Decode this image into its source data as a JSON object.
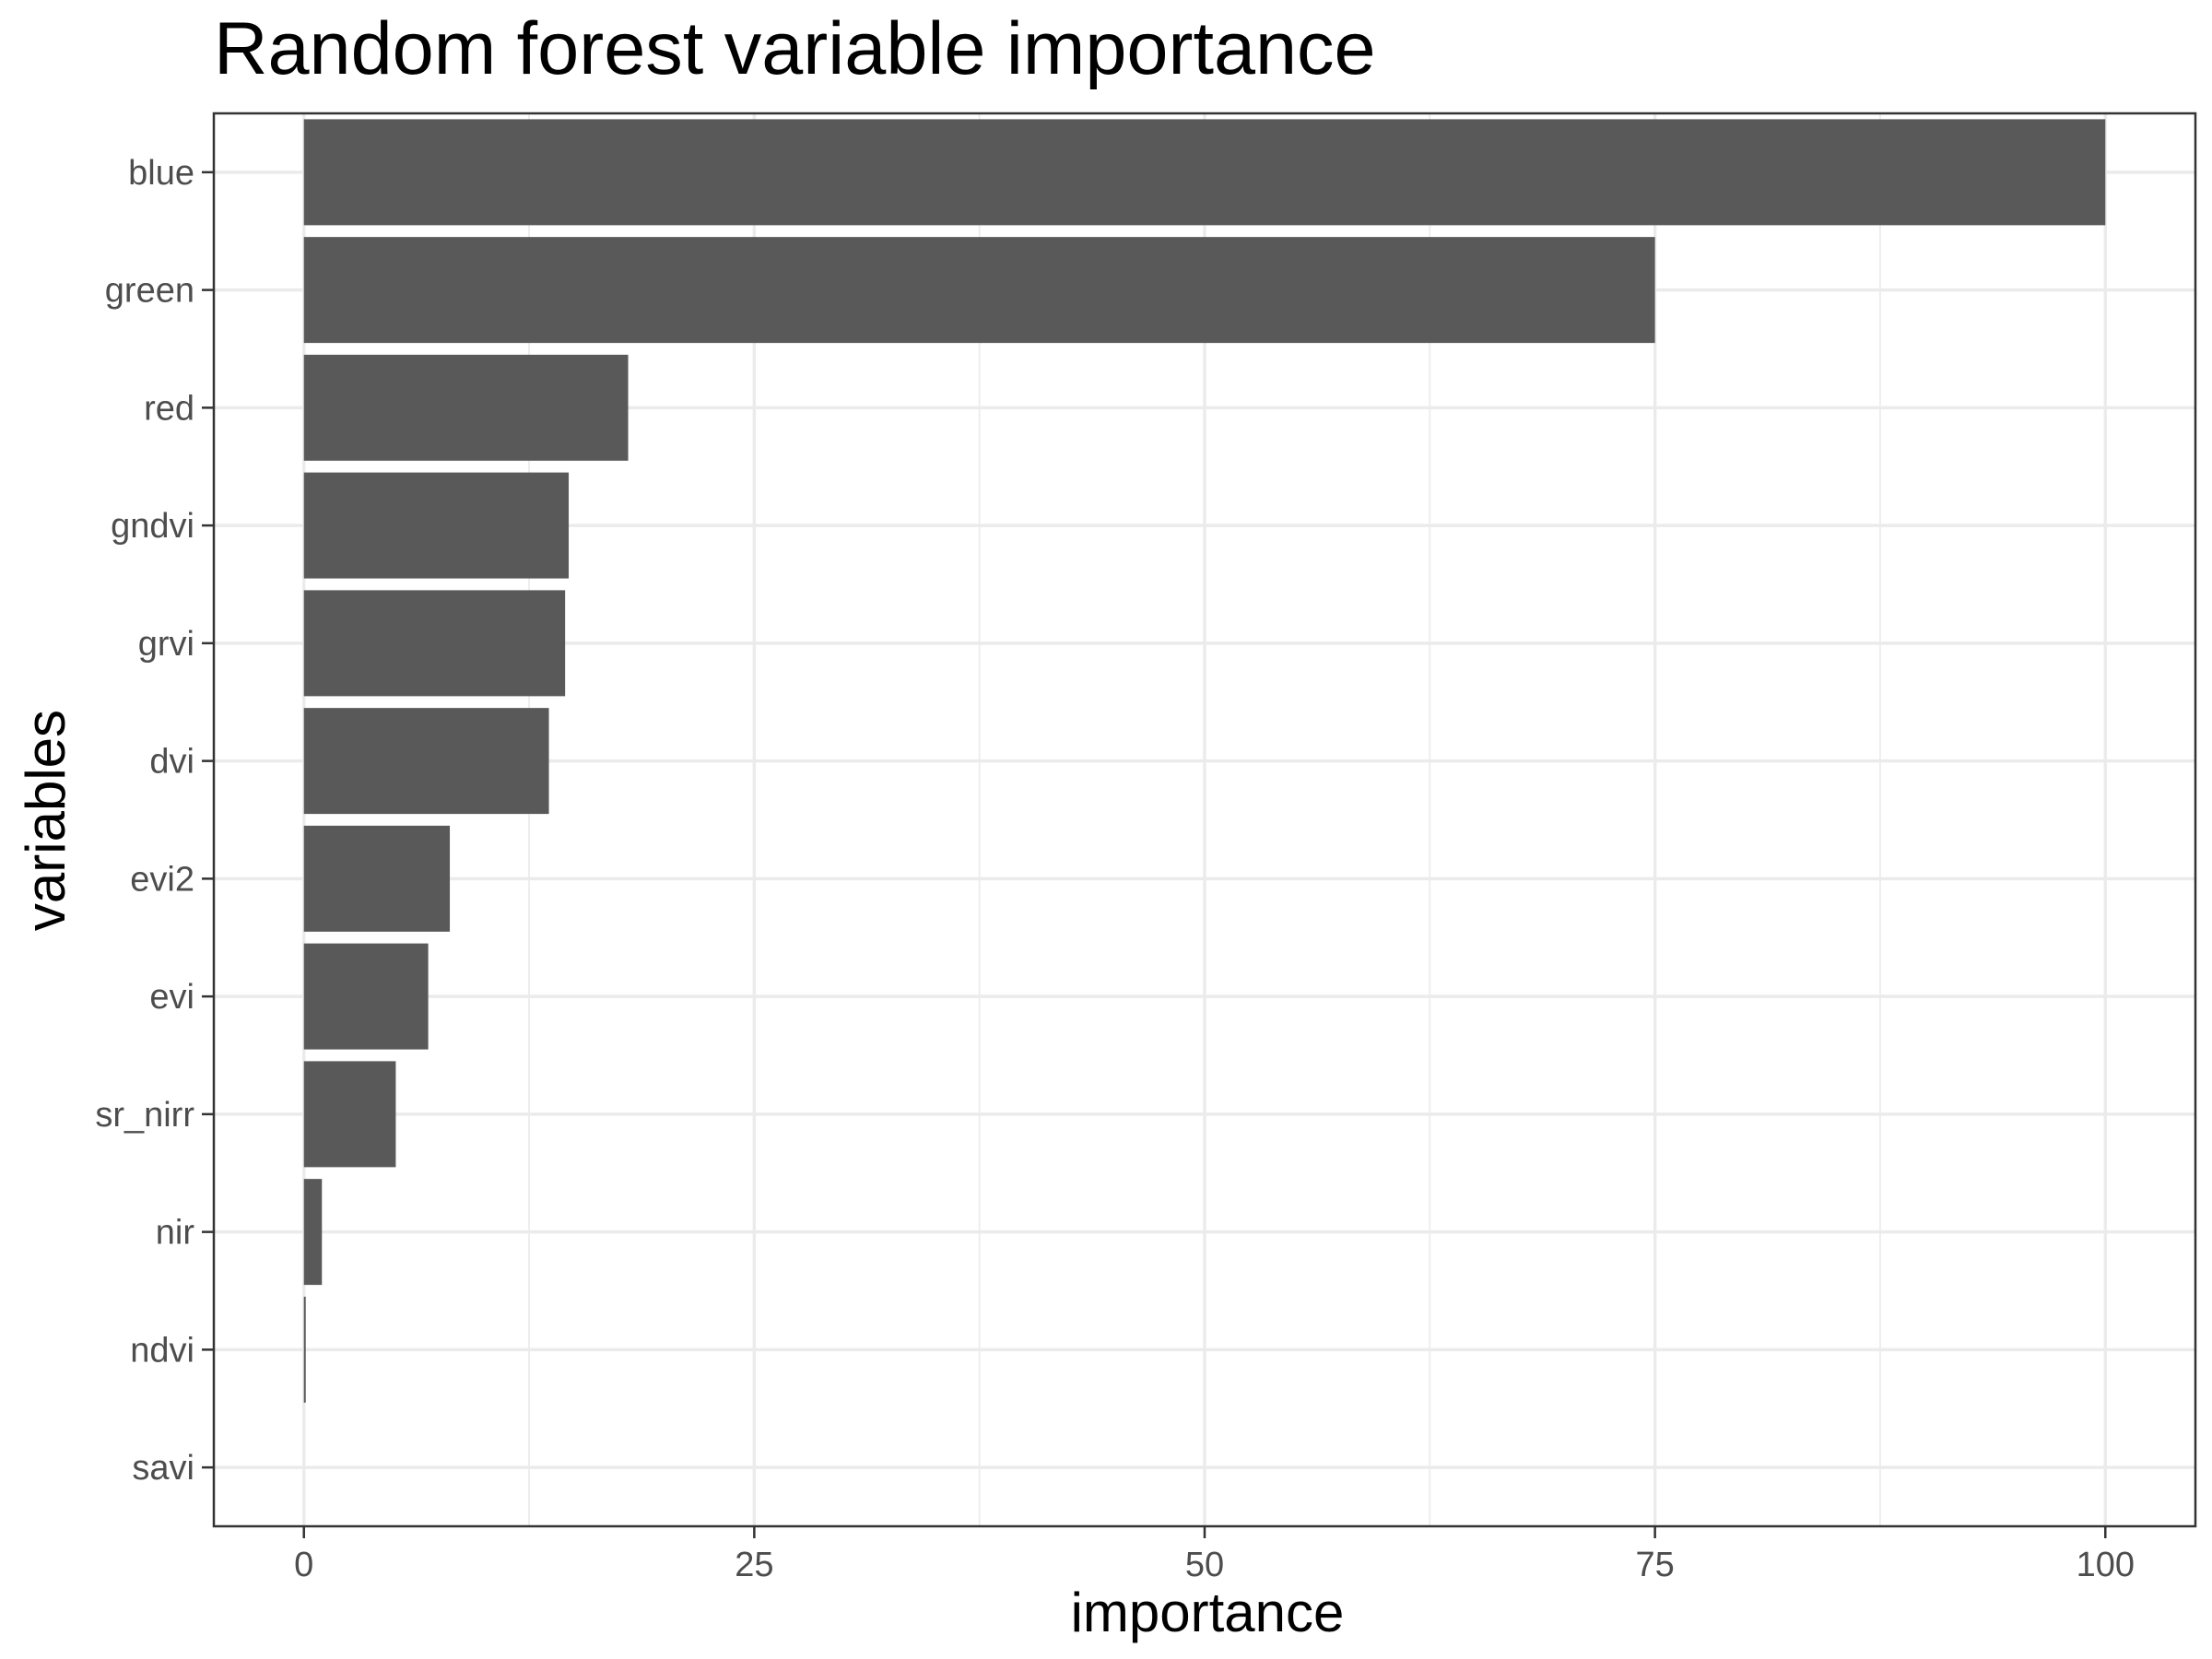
{
  "chart_data": {
    "type": "bar",
    "orientation": "horizontal",
    "title": "Random forest variable importance",
    "xlabel": "importance",
    "ylabel": "variables",
    "categories": [
      "blue",
      "green",
      "red",
      "gndvi",
      "grvi",
      "dvi",
      "evi2",
      "evi",
      "sr_nirr",
      "nir",
      "ndvi",
      "savi"
    ],
    "values": [
      100,
      75,
      18,
      14.7,
      14.5,
      13.6,
      8.1,
      6.9,
      5.1,
      1.0,
      0.1,
      0
    ],
    "xlim": [
      -5,
      105
    ],
    "xticks": [
      0,
      25,
      50,
      75,
      100
    ],
    "xtick_labels": [
      "0",
      "25",
      "50",
      "75",
      "100"
    ],
    "grid": true,
    "bar_color": "#595959",
    "theme": "bw"
  }
}
